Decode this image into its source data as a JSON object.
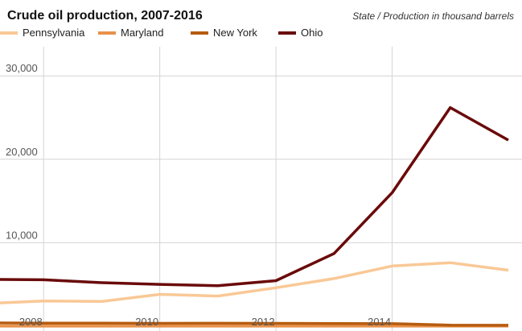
{
  "chart_data": {
    "type": "line",
    "title": "Crude oil production, 2007-2016",
    "subtitle": "State / Production in thousand barrels",
    "x": [
      2007,
      2008,
      2009,
      2010,
      2011,
      2012,
      2013,
      2014,
      2015,
      2016
    ],
    "xticks": [
      2008,
      2010,
      2012,
      2014
    ],
    "xticks_labels": [
      "2008",
      "2010",
      "2012",
      "2014"
    ],
    "yticks": [
      10000,
      20000,
      30000
    ],
    "yticks_labels": [
      "10,000",
      "20,000",
      "30,000"
    ],
    "xlim": [
      2007,
      2016
    ],
    "ylim": [
      -300,
      33500
    ],
    "grid": true,
    "legend_position": "top",
    "series": [
      {
        "name": "Pennsylvania",
        "color": "#f9c896",
        "values": [
          2700,
          3000,
          2950,
          3800,
          3600,
          4600,
          5700,
          7200,
          7600,
          6700
        ]
      },
      {
        "name": "Maryland",
        "color": "#e8914a",
        "values": [
          0,
          0,
          0,
          0,
          0,
          0,
          0,
          0,
          0,
          0
        ]
      },
      {
        "name": "New York",
        "color": "#b65c10",
        "values": [
          380,
          360,
          350,
          330,
          340,
          330,
          310,
          290,
          120,
          100
        ]
      },
      {
        "name": "Ohio",
        "color": "#6a0a0a",
        "values": [
          5600,
          5550,
          5200,
          5000,
          4850,
          5450,
          8700,
          16000,
          26200,
          22300
        ]
      }
    ]
  }
}
